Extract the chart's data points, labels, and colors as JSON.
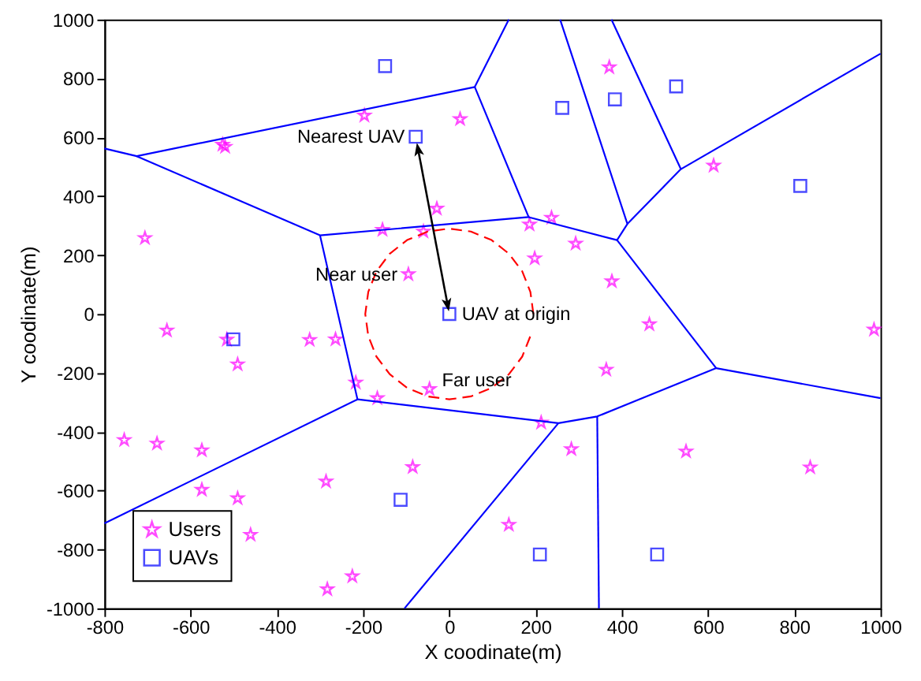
{
  "chart_data": {
    "type": "scatter",
    "xlabel": "X coodinate(m)",
    "ylabel": "Y coodinate(m)",
    "xlim": [
      -800,
      1000
    ],
    "xticks": [
      -800,
      -600,
      -400,
      -200,
      0,
      200,
      400,
      600,
      800,
      1000
    ],
    "ylim": [
      -1000,
      1000
    ],
    "yticks": [
      -1000,
      -800,
      -600,
      -400,
      -200,
      0,
      200,
      400,
      600,
      800,
      1000
    ],
    "grid": false,
    "legend": "bottom left",
    "series": [
      {
        "name": "Users",
        "marker": "star",
        "color": "#ff00ff",
        "x": [
          -197,
          25,
          -526,
          -520,
          -706,
          -29,
          -155,
          -60,
          -95,
          -655,
          -516,
          -491,
          -324,
          -264,
          -217,
          -167,
          -46,
          -754,
          -678,
          -574,
          -574,
          -491,
          -461,
          -286,
          -85,
          -225,
          -283,
          464,
          985,
          364,
          213,
          283,
          549,
          837,
          138,
          371,
          613,
          186,
          237,
          293,
          198,
          377
        ],
        "values": [
          674,
          662,
          575,
          568,
          258,
          358,
          286,
          280,
          135,
          -56,
          -87,
          -171,
          -88,
          -86,
          -233,
          -286,
          -255,
          -428,
          -440,
          -463,
          -597,
          -626,
          -750,
          -569,
          -520,
          -891,
          -935,
          -35,
          -53,
          -189,
          -369,
          -459,
          -467,
          -521,
          -716,
          838,
          504,
          304,
          327,
          239,
          189,
          111
        ]
      },
      {
        "name": "UAVs",
        "marker": "square",
        "color": "#0000ff",
        "x": [
          0,
          -78,
          -149,
          262,
          384,
          526,
          814,
          -501,
          -113,
          210,
          482
        ],
        "values": [
          0,
          602,
          842,
          700,
          729,
          773,
          435,
          -86,
          -631,
          -817,
          -817
        ]
      },
      {
        "type": "line",
        "line_style": "dashed",
        "color": "#ff0000",
        "x": [
          195,
          188,
          169,
          138,
          98,
          50,
          0,
          -50,
          -98,
          -138,
          -169,
          -188,
          -195,
          -188,
          -169,
          -138,
          -98,
          -50,
          0,
          50,
          98,
          138,
          169,
          188
        ],
        "values": [
          0,
          75,
          145,
          205,
          251,
          280,
          290,
          280,
          251,
          205,
          145,
          75,
          0,
          -75,
          -145,
          -205,
          -251,
          -280,
          -290,
          -280,
          -251,
          -205,
          -145,
          -75
        ]
      },
      {
        "type": "line",
        "color": "#0000ff",
        "x": [
          -800,
          -725,
          59,
          138
        ],
        "values": [
          562,
          536,
          771,
          1000
        ]
      },
      {
        "type": "line",
        "color": "#0000ff",
        "x": [
          -725,
          -300,
          184,
          59
        ],
        "values": [
          536,
          267,
          329,
          771
        ]
      },
      {
        "type": "line",
        "color": "#0000ff",
        "x": [
          -300,
          -213,
          -800
        ],
        "values": [
          267,
          -290,
          -711
        ]
      },
      {
        "type": "line",
        "color": "#0000ff",
        "x": [
          -213,
          253,
          343,
          619,
          1000
        ],
        "values": [
          -290,
          -371,
          -348,
          -184,
          -286
        ]
      },
      {
        "type": "line",
        "color": "#0000ff",
        "x": [
          253,
          -104
        ],
        "values": [
          -371,
          -1000
        ]
      },
      {
        "type": "line",
        "color": "#0000ff",
        "x": [
          343,
          347
        ],
        "values": [
          -348,
          -1000
        ]
      },
      {
        "type": "line",
        "color": "#0000ff",
        "x": [
          184,
          389,
          413,
          257
        ],
        "values": [
          329,
          251,
          306,
          1000
        ]
      },
      {
        "type": "line",
        "color": "#0000ff",
        "x": [
          389,
          619
        ],
        "values": [
          251,
          -184
        ]
      },
      {
        "type": "line",
        "color": "#0000ff",
        "x": [
          413,
          537,
          376
        ],
        "values": [
          306,
          492,
          1000
        ]
      },
      {
        "type": "line",
        "color": "#0000ff",
        "x": [
          537,
          1000
        ],
        "values": [
          492,
          884
        ]
      }
    ],
    "annotations": [
      {
        "text": "Nearest UAV",
        "x": -78,
        "y": 602
      },
      {
        "text": "Near user",
        "x": -95,
        "y": 135
      },
      {
        "text": "UAV at origin",
        "x": 0,
        "y": 0
      },
      {
        "text": "Far user",
        "x": -46,
        "y": -255
      }
    ]
  }
}
